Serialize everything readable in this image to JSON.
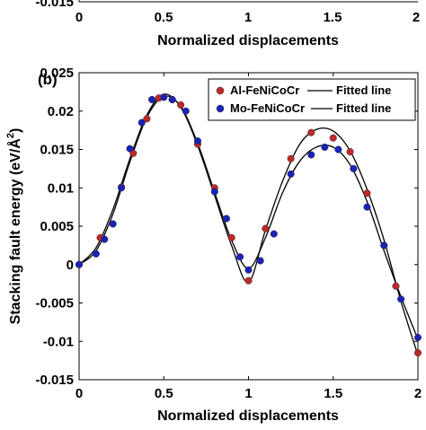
{
  "top_panel": {
    "xlabel": "Normalized displacements",
    "y_tick_label": "-0.015",
    "x_tick_labels": [
      "0",
      "0.5",
      "1",
      "1.5",
      "2"
    ]
  },
  "chart_data": {
    "type": "scatter",
    "panel_label": "(b)",
    "xlabel": "Normalized displacements",
    "ylabel": "Stacking fault energy (eV/Å",
    "ylabel_superscript": "2",
    "ylabel_close": ")",
    "xlim": [
      0,
      2
    ],
    "ylim": [
      -0.015,
      0.025
    ],
    "x_ticks": [
      0,
      0.5,
      1,
      1.5,
      2
    ],
    "x_tick_labels": [
      "0",
      "0.5",
      "1",
      "1.5",
      "2"
    ],
    "y_ticks": [
      -0.015,
      -0.01,
      -0.005,
      0,
      0.005,
      0.01,
      0.015,
      0.02,
      0.025
    ],
    "y_tick_labels": [
      "-0.015",
      "-0.01",
      "-0.005",
      "0",
      "0.005",
      "0.01",
      "0.015",
      "0.02",
      "0.025"
    ],
    "grid": false,
    "legend_position": "top-right",
    "series": [
      {
        "name": "Al-FeNiCoCr",
        "color": "#c0282a",
        "marker": "circle",
        "points": [
          [
            0,
            0
          ],
          [
            0.125,
            0.0035
          ],
          [
            0.25,
            0.0101
          ],
          [
            0.32,
            0.0145
          ],
          [
            0.4,
            0.019
          ],
          [
            0.47,
            0.0217
          ],
          [
            0.55,
            0.0215
          ],
          [
            0.6,
            0.0208
          ],
          [
            0.7,
            0.0157
          ],
          [
            0.8,
            0.01
          ],
          [
            0.9,
            0.0035
          ],
          [
            1.0,
            -0.0021
          ],
          [
            1.1,
            0.0047
          ],
          [
            1.25,
            0.0138
          ],
          [
            1.37,
            0.0172
          ],
          [
            1.5,
            0.0165
          ],
          [
            1.6,
            0.0147
          ],
          [
            1.7,
            0.0093
          ],
          [
            1.8,
            0.0025
          ],
          [
            1.87,
            -0.0028
          ],
          [
            2.0,
            -0.0115
          ]
        ]
      },
      {
        "name": "Mo-FeNiCoCr",
        "color": "#1a22b8",
        "marker": "circle",
        "points": [
          [
            0,
            0
          ],
          [
            0.1,
            0.0014
          ],
          [
            0.15,
            0.0033
          ],
          [
            0.2,
            0.0053
          ],
          [
            0.25,
            0.01
          ],
          [
            0.3,
            0.0151
          ],
          [
            0.37,
            0.0185
          ],
          [
            0.43,
            0.0215
          ],
          [
            0.5,
            0.0218
          ],
          [
            0.55,
            0.0215
          ],
          [
            0.63,
            0.02
          ],
          [
            0.7,
            0.0161
          ],
          [
            0.8,
            0.0095
          ],
          [
            0.87,
            0.006
          ],
          [
            0.95,
            0.001
          ],
          [
            1.0,
            -0.0007
          ],
          [
            1.07,
            0.0005
          ],
          [
            1.15,
            0.004
          ],
          [
            1.25,
            0.0118
          ],
          [
            1.37,
            0.0143
          ],
          [
            1.45,
            0.0153
          ],
          [
            1.53,
            0.015
          ],
          [
            1.62,
            0.0125
          ],
          [
            1.7,
            0.0075
          ],
          [
            1.8,
            0.0025
          ],
          [
            1.9,
            -0.0045
          ],
          [
            2.0,
            -0.0095
          ]
        ]
      }
    ],
    "fitted_lines": [
      {
        "name": "Fitted line",
        "for": "Al-FeNiCoCr",
        "color": "#000000",
        "points": [
          [
            0,
            0
          ],
          [
            0.1,
            0.0022
          ],
          [
            0.2,
            0.0072
          ],
          [
            0.3,
            0.0138
          ],
          [
            0.4,
            0.0195
          ],
          [
            0.5,
            0.0222
          ],
          [
            0.6,
            0.0205
          ],
          [
            0.7,
            0.0155
          ],
          [
            0.8,
            0.009
          ],
          [
            0.9,
            0.0025
          ],
          [
            1.0,
            -0.0023
          ],
          [
            1.1,
            0.0045
          ],
          [
            1.2,
            0.0108
          ],
          [
            1.3,
            0.0156
          ],
          [
            1.4,
            0.0176
          ],
          [
            1.5,
            0.0174
          ],
          [
            1.6,
            0.0148
          ],
          [
            1.7,
            0.0098
          ],
          [
            1.8,
            0.0032
          ],
          [
            1.9,
            -0.0048
          ],
          [
            2.0,
            -0.0118
          ]
        ]
      },
      {
        "name": "Fitted line",
        "for": "Mo-FeNiCoCr",
        "color": "#000000",
        "points": [
          [
            0,
            0
          ],
          [
            0.1,
            0.0018
          ],
          [
            0.2,
            0.0066
          ],
          [
            0.3,
            0.0134
          ],
          [
            0.4,
            0.0192
          ],
          [
            0.5,
            0.0219
          ],
          [
            0.6,
            0.0206
          ],
          [
            0.7,
            0.0158
          ],
          [
            0.8,
            0.0094
          ],
          [
            0.9,
            0.0032
          ],
          [
            1.0,
            -0.0005
          ],
          [
            1.1,
            0.0035
          ],
          [
            1.2,
            0.0093
          ],
          [
            1.3,
            0.0134
          ],
          [
            1.4,
            0.0153
          ],
          [
            1.5,
            0.0153
          ],
          [
            1.6,
            0.013
          ],
          [
            1.7,
            0.0082
          ],
          [
            1.8,
            0.0018
          ],
          [
            1.9,
            -0.0042
          ],
          [
            2.0,
            -0.0097
          ]
        ]
      }
    ]
  }
}
